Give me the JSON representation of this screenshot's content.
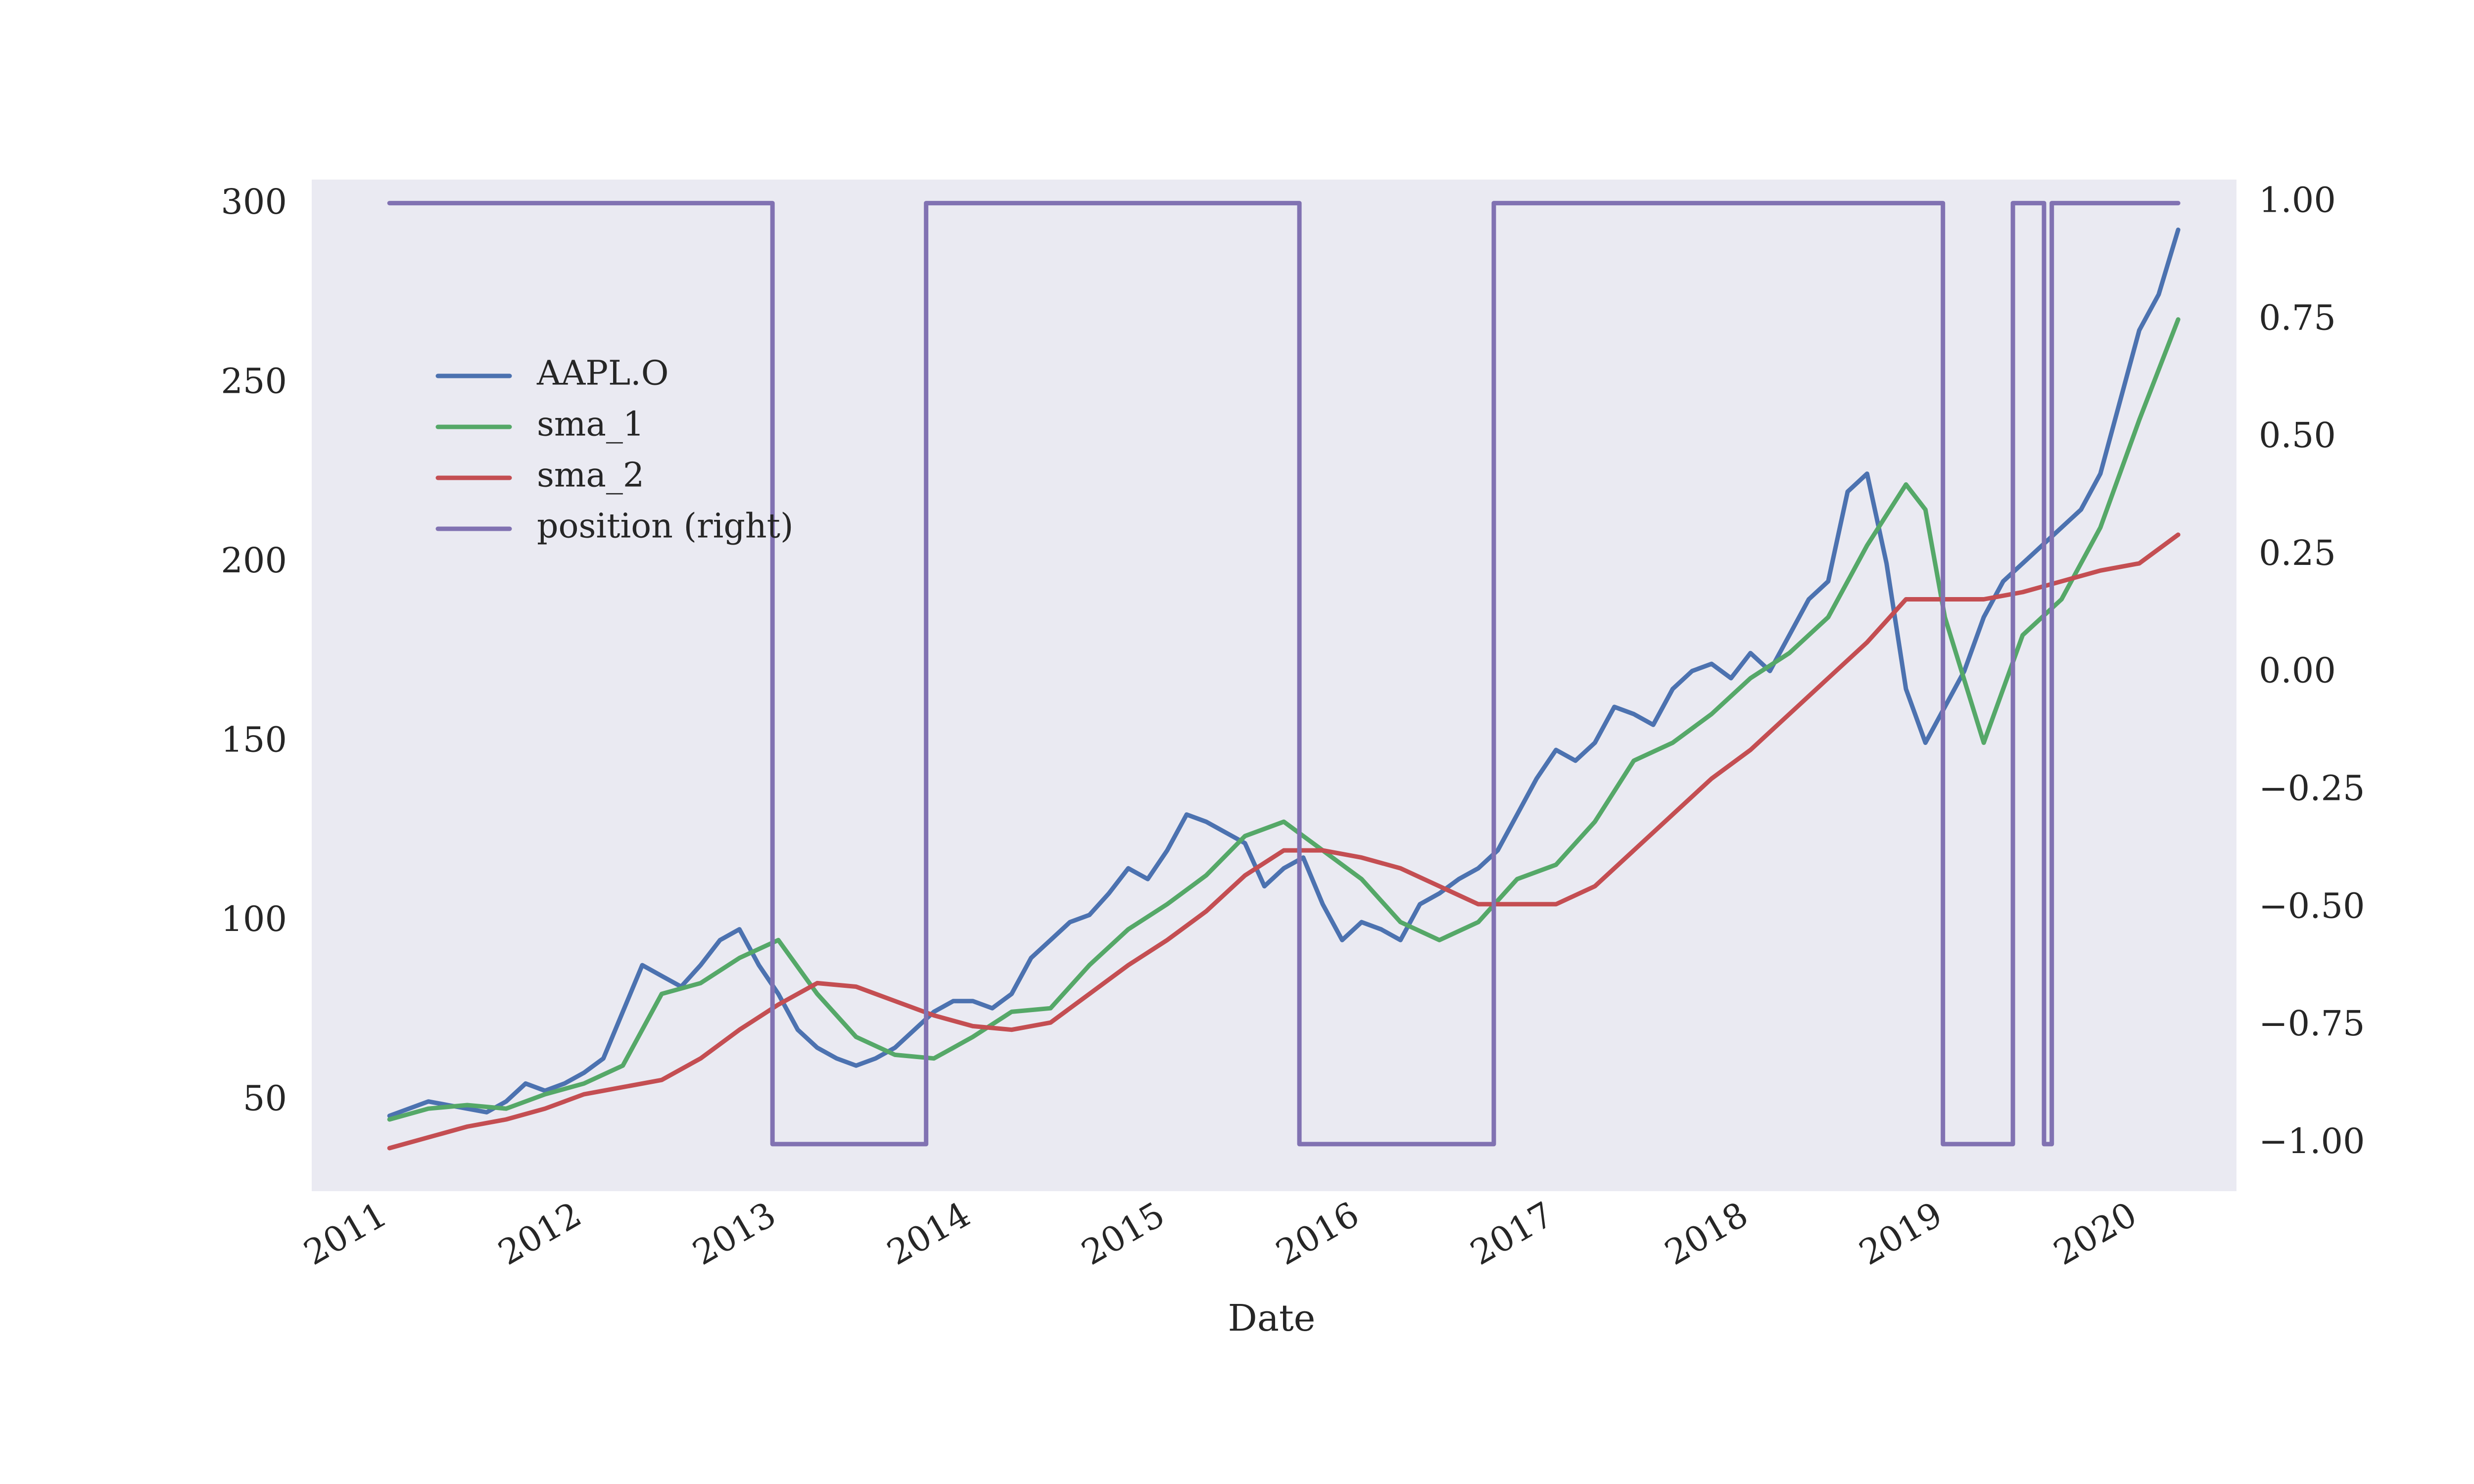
{
  "chart_data": {
    "type": "line",
    "xlabel": "Date",
    "ylabel": "",
    "title": "",
    "x_ticks": [
      "2011",
      "2012",
      "2013",
      "2014",
      "2015",
      "2016",
      "2017",
      "2018",
      "2019",
      "2020"
    ],
    "y_ticks": [
      "50",
      "100",
      "150",
      "200",
      "250",
      "300"
    ],
    "y2_ticks": [
      "−1.00",
      "−0.75",
      "−0.50",
      "−0.25",
      "0.00",
      "0.25",
      "0.50",
      "0.75",
      "1.00"
    ],
    "xlim": [
      2010.6,
      2020.5
    ],
    "ylim": [
      25,
      307
    ],
    "y2lim": [
      -1.1,
      1.05
    ],
    "grid": false,
    "legend_position": "upper-left",
    "background": "#EAEAF2",
    "series": [
      {
        "name": "AAPL.O",
        "axis": "left",
        "color": "#4C72B0",
        "x": [
          2011.0,
          2011.1,
          2011.2,
          2011.3,
          2011.4,
          2011.5,
          2011.6,
          2011.7,
          2011.8,
          2011.9,
          2012.0,
          2012.1,
          2012.2,
          2012.3,
          2012.4,
          2012.5,
          2012.6,
          2012.7,
          2012.8,
          2012.9,
          2013.0,
          2013.1,
          2013.2,
          2013.3,
          2013.4,
          2013.5,
          2013.6,
          2013.7,
          2013.8,
          2013.9,
          2014.0,
          2014.1,
          2014.2,
          2014.3,
          2014.4,
          2014.5,
          2014.6,
          2014.7,
          2014.8,
          2014.9,
          2015.0,
          2015.1,
          2015.2,
          2015.3,
          2015.4,
          2015.5,
          2015.6,
          2015.7,
          2015.8,
          2015.9,
          2016.0,
          2016.1,
          2016.2,
          2016.3,
          2016.4,
          2016.5,
          2016.6,
          2016.7,
          2016.8,
          2016.9,
          2017.0,
          2017.1,
          2017.2,
          2017.3,
          2017.4,
          2017.5,
          2017.6,
          2017.7,
          2017.8,
          2017.9,
          2018.0,
          2018.1,
          2018.2,
          2018.3,
          2018.4,
          2018.5,
          2018.6,
          2018.7,
          2018.8,
          2018.9,
          2019.0,
          2019.1,
          2019.2,
          2019.3,
          2019.4,
          2019.5,
          2019.6,
          2019.7,
          2019.8,
          2019.9,
          2020.0,
          2020.1,
          2020.2
        ],
        "y": [
          46,
          48,
          50,
          49,
          48,
          47,
          50,
          55,
          53,
          55,
          58,
          62,
          75,
          88,
          85,
          82,
          88,
          95,
          98,
          88,
          80,
          70,
          65,
          62,
          60,
          62,
          65,
          70,
          75,
          78,
          78,
          76,
          80,
          90,
          95,
          100,
          102,
          108,
          115,
          112,
          120,
          130,
          128,
          125,
          122,
          110,
          115,
          118,
          105,
          95,
          100,
          98,
          95,
          105,
          108,
          112,
          115,
          120,
          130,
          140,
          148,
          145,
          150,
          160,
          158,
          155,
          165,
          170,
          172,
          168,
          175,
          170,
          180,
          190,
          195,
          220,
          225,
          200,
          165,
          150,
          160,
          170,
          185,
          195,
          200,
          205,
          210,
          215,
          225,
          245,
          265,
          275,
          293
        ]
      },
      {
        "name": "sma_1",
        "axis": "left",
        "color": "#55A868",
        "x": [
          2011.0,
          2011.2,
          2011.4,
          2011.6,
          2011.8,
          2012.0,
          2012.2,
          2012.4,
          2012.6,
          2012.8,
          2013.0,
          2013.2,
          2013.4,
          2013.6,
          2013.8,
          2014.0,
          2014.2,
          2014.4,
          2014.6,
          2014.8,
          2015.0,
          2015.2,
          2015.4,
          2015.6,
          2015.8,
          2016.0,
          2016.2,
          2016.4,
          2016.6,
          2016.8,
          2017.0,
          2017.2,
          2017.4,
          2017.6,
          2017.8,
          2018.0,
          2018.2,
          2018.4,
          2018.6,
          2018.8,
          2018.9,
          2019.0,
          2019.2,
          2019.4,
          2019.6,
          2019.8,
          2020.0,
          2020.2
        ],
        "y": [
          45,
          48,
          49,
          48,
          52,
          55,
          60,
          80,
          83,
          90,
          95,
          80,
          68,
          63,
          62,
          68,
          75,
          76,
          88,
          98,
          105,
          113,
          124,
          128,
          120,
          112,
          100,
          95,
          100,
          112,
          116,
          128,
          145,
          150,
          158,
          168,
          175,
          185,
          205,
          222,
          215,
          185,
          150,
          180,
          190,
          210,
          240,
          268
        ]
      },
      {
        "name": "sma_2",
        "axis": "left",
        "color": "#C44E52",
        "x": [
          2011.0,
          2011.2,
          2011.4,
          2011.6,
          2011.8,
          2012.0,
          2012.2,
          2012.4,
          2012.6,
          2012.8,
          2013.0,
          2013.2,
          2013.4,
          2013.6,
          2013.8,
          2014.0,
          2014.2,
          2014.4,
          2014.6,
          2014.8,
          2015.0,
          2015.2,
          2015.4,
          2015.6,
          2015.8,
          2016.0,
          2016.2,
          2016.4,
          2016.6,
          2016.8,
          2017.0,
          2017.2,
          2017.4,
          2017.6,
          2017.8,
          2018.0,
          2018.2,
          2018.4,
          2018.6,
          2018.8,
          2019.0,
          2019.2,
          2019.4,
          2019.6,
          2019.8,
          2020.0,
          2020.2
        ],
        "y": [
          37,
          40,
          43,
          45,
          48,
          52,
          54,
          56,
          62,
          70,
          77,
          83,
          82,
          78,
          74,
          71,
          70,
          72,
          80,
          88,
          95,
          103,
          113,
          120,
          120,
          118,
          115,
          110,
          105,
          105,
          105,
          110,
          120,
          130,
          140,
          148,
          158,
          168,
          178,
          190,
          190,
          190,
          192,
          195,
          198,
          200,
          208
        ]
      },
      {
        "name": "position (right)",
        "axis": "right",
        "color": "#8172B2",
        "x": [
          2011.0,
          2012.97,
          2012.97,
          2013.76,
          2013.76,
          2015.68,
          2015.68,
          2016.68,
          2016.68,
          2018.99,
          2018.99,
          2019.35,
          2019.35,
          2019.51,
          2019.51,
          2019.55,
          2019.55,
          2020.2
        ],
        "y": [
          1,
          1,
          -1,
          -1,
          1,
          1,
          -1,
          -1,
          1,
          1,
          -1,
          -1,
          1,
          1,
          -1,
          -1,
          1,
          1
        ]
      }
    ]
  }
}
